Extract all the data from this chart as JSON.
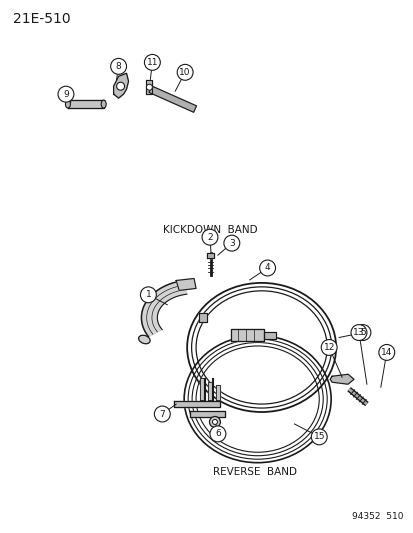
{
  "title": "21E-510",
  "background_color": "#ffffff",
  "fig_width": 4.14,
  "fig_height": 5.33,
  "dpi": 100,
  "reverse_band_label": "REVERSE  BAND",
  "kickdown_band_label": "KICKDOWN  BAND",
  "catalog_number": "94352  510",
  "line_color": "#1a1a1a",
  "callout_circle_color": "#ffffff",
  "callout_border_color": "#1a1a1a"
}
